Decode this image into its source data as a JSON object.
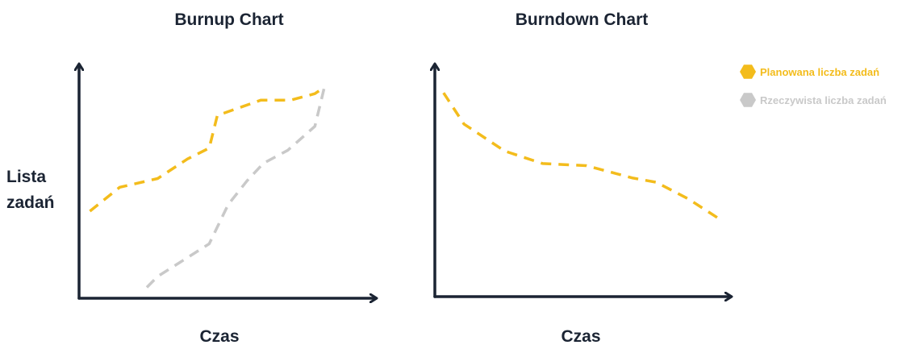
{
  "colors": {
    "planned": "#f3bc1c",
    "actual": "#c9c9c9",
    "axis": "#1b2433"
  },
  "legend": [
    {
      "label": "Planowana liczba zadań",
      "color": "#f3bc1c",
      "icon": "hexagon-icon"
    },
    {
      "label": "Rzeczywista liczba zadań",
      "color": "#c9c9c9",
      "icon": "hexagon-icon"
    }
  ],
  "chart_data": [
    {
      "type": "line",
      "title": "Burnup Chart",
      "xlabel": "Czas",
      "ylabel": "Lista zadań",
      "xlim": [
        0,
        10
      ],
      "ylim": [
        0,
        10
      ],
      "grid": false,
      "ticks": false,
      "series": [
        {
          "name": "Planowana liczba zadań",
          "color": "#f3bc1c",
          "x": [
            0.4,
            1.5,
            2.9,
            4.0,
            4.8,
            5.1,
            6.7,
            7.8,
            8.7,
            9.05
          ],
          "y": [
            4.0,
            5.1,
            5.5,
            6.4,
            6.9,
            8.4,
            9.1,
            9.1,
            9.4,
            9.7
          ]
        },
        {
          "name": "Rzeczywista liczba zadań",
          "color": "#c9c9c9",
          "x": [
            2.5,
            2.9,
            4.8,
            5.5,
            6.2,
            6.8,
            7.7,
            8.7,
            9.05
          ],
          "y": [
            0.5,
            1.0,
            2.5,
            4.3,
            5.4,
            6.2,
            6.8,
            7.9,
            9.7
          ]
        }
      ]
    },
    {
      "type": "line",
      "title": "Burndown Chart",
      "xlabel": "Czas",
      "ylabel": "",
      "xlim": [
        0,
        10
      ],
      "ylim": [
        0,
        10
      ],
      "grid": false,
      "ticks": false,
      "series": [
        {
          "name": "Planowana liczba zadań",
          "color": "#f3bc1c",
          "x": [
            0.3,
            1.0,
            2.4,
            3.7,
            5.2,
            6.8,
            7.6,
            8.7,
            9.7
          ],
          "y": [
            9.8,
            8.3,
            7.0,
            6.4,
            6.3,
            5.7,
            5.5,
            4.7,
            3.8
          ]
        }
      ]
    }
  ]
}
